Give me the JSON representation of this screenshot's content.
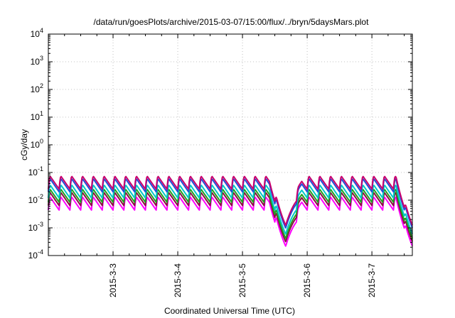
{
  "chart_data": {
    "type": "line",
    "title": "/data/run/goesPlots/archive/2015-03-07/15:00/flux/../bryn/5daysMars.plot",
    "xlabel": "Coordinated Universal Time (UTC)",
    "ylabel": "cGy/day",
    "y_scale": "log",
    "ylim": [
      0.0001,
      10000
    ],
    "y_ticks": [
      {
        "value": 0.0001,
        "base": "10",
        "exp": "-4"
      },
      {
        "value": 0.001,
        "base": "10",
        "exp": "-3"
      },
      {
        "value": 0.01,
        "base": "10",
        "exp": "-2"
      },
      {
        "value": 0.1,
        "base": "10",
        "exp": "-1"
      },
      {
        "value": 1,
        "base": "10",
        "exp": "0"
      },
      {
        "value": 10,
        "base": "10",
        "exp": "1"
      },
      {
        "value": 100,
        "base": "10",
        "exp": "2"
      },
      {
        "value": 1000,
        "base": "10",
        "exp": "3"
      },
      {
        "value": 10000,
        "base": "10",
        "exp": "4"
      }
    ],
    "xlim": [
      "2015-03-02 00:00",
      "2015-03-07 15:00"
    ],
    "x_ticks": [
      "2015-3-3",
      "2015-3-4",
      "2015-3-5",
      "2015-3-6",
      "2015-3-7"
    ],
    "grid": true,
    "legend": "none",
    "pattern": {
      "description": "Sawtooth daily modulation: fast rise, gradual decay; repeating about every 4 hours with a dip near 2015-03-05 16:00 and a drop at the end.",
      "period_hours": 4,
      "peak": 0.06,
      "trough": 0.02,
      "dips": [
        {
          "at": "2015-03-05 16:00",
          "min": 0.001
        },
        {
          "at": "2015-03-07 15:00",
          "min": 0.001
        }
      ]
    },
    "series": [
      {
        "color": "#c8006e",
        "scale": 1.25
      },
      {
        "color": "#2050d8",
        "scale": 1.0
      },
      {
        "color": "#00c8c8",
        "scale": 0.6
      },
      {
        "color": "#20a020",
        "scale": 0.42
      },
      {
        "color": "#8a1040",
        "scale": 0.32
      },
      {
        "color": "#ff00ff",
        "scale": 0.22
      }
    ]
  }
}
